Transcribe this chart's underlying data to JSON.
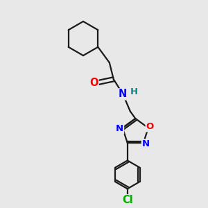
{
  "background_color": "#e8e8e8",
  "bond_color": "#1a1a1a",
  "line_width": 1.6,
  "atom_colors": {
    "O": "#ff0000",
    "N": "#0000ff",
    "H": "#008b8b",
    "Cl": "#00aa00",
    "C": "#1a1a1a"
  },
  "font_size": 9.5
}
